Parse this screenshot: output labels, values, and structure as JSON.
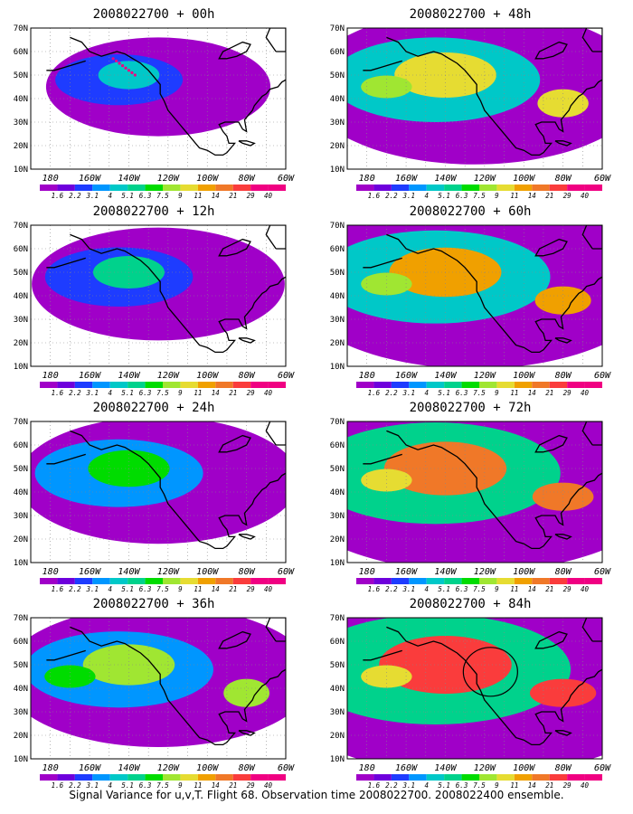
{
  "colorbar": {
    "labels": [
      "1.6",
      "2.2",
      "3.1",
      "4",
      "5.1",
      "6.3",
      "7.5",
      "9",
      "11",
      "14",
      "21",
      "29",
      "40"
    ],
    "colors": [
      "#a000c8",
      "#6e00dc",
      "#1e3cff",
      "#0096ff",
      "#00c8c8",
      "#00d28c",
      "#00dc00",
      "#a0e632",
      "#e6dc32",
      "#f0a000",
      "#f07828",
      "#fa3c3c",
      "#f00082"
    ]
  },
  "axes": {
    "lat_labels": [
      "10N",
      "20N",
      "30N",
      "40N",
      "50N",
      "60N",
      "70N"
    ],
    "lon_labels": [
      "180",
      "160W",
      "140W",
      "120W",
      "100W",
      "80W",
      "60W"
    ]
  },
  "panels": [
    {
      "id": "p00",
      "title": "2008022700 + 00h",
      "intensity": 0
    },
    {
      "id": "p48",
      "title": "2008022700 + 48h",
      "intensity": 4
    },
    {
      "id": "p12",
      "title": "2008022700 + 12h",
      "intensity": 1
    },
    {
      "id": "p60",
      "title": "2008022700 + 60h",
      "intensity": 5
    },
    {
      "id": "p24",
      "title": "2008022700 + 24h",
      "intensity": 2
    },
    {
      "id": "p72",
      "title": "2008022700 + 72h",
      "intensity": 6
    },
    {
      "id": "p36",
      "title": "2008022700 + 36h",
      "intensity": 3
    },
    {
      "id": "p84",
      "title": "2008022700 + 84h",
      "intensity": 7
    }
  ],
  "caption": "Signal Variance for u,v,T. Flight 68. Observation time 2008022700. 2008022400 ensemble."
}
